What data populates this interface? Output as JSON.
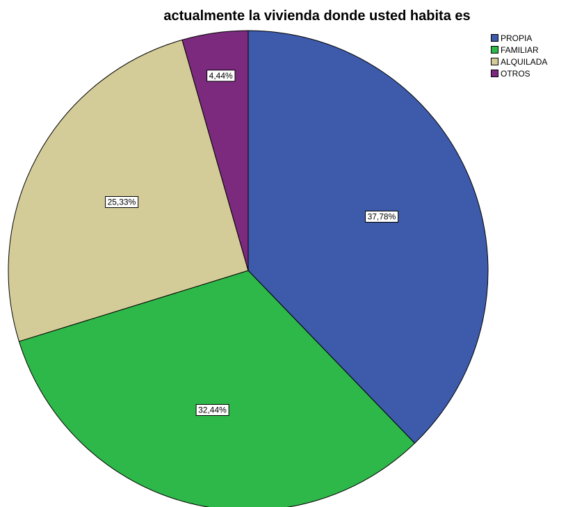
{
  "chart_data": {
    "type": "pie",
    "title": "actualmente la vivienda donde usted habita es",
    "categories": [
      "PROPIA",
      "FAMILIAR",
      "ALQUILADA",
      "OTROS"
    ],
    "values": [
      37.78,
      32.44,
      25.33,
      4.44
    ],
    "labels": [
      "37,78%",
      "32,44%",
      "25,33%",
      "4,44%"
    ],
    "colors": [
      "#3d5aab",
      "#2fb84a",
      "#d4cc98",
      "#7b2a7e"
    ],
    "start_angle": "12 o'clock",
    "direction": "clockwise",
    "legend": "top-right"
  }
}
